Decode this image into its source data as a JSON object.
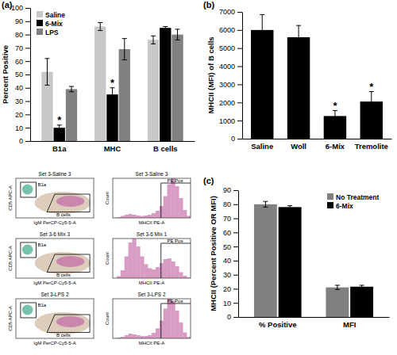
{
  "chart_data": [
    {
      "type": "bar",
      "title": "(a)",
      "y_label": "Percent Positive",
      "categories": [
        "B1a",
        "MHC",
        "B cells"
      ],
      "series": [
        {
          "name": "Saline",
          "color": "#c8c8c8",
          "values": [
            52,
            86,
            76
          ],
          "errors": [
            10,
            3,
            3
          ]
        },
        {
          "name": "6-Mix",
          "color": "#000000",
          "values": [
            10,
            35,
            85
          ],
          "errors": [
            2,
            5,
            1
          ]
        },
        {
          "name": "LPS",
          "color": "#808080",
          "values": [
            39,
            69,
            80
          ],
          "errors": [
            2,
            8,
            4
          ]
        }
      ],
      "annotations": [
        {
          "text": "*",
          "category": "B1a",
          "series": "6-Mix"
        },
        {
          "text": "*",
          "category": "MHC",
          "series": "6-Mix"
        }
      ],
      "ylim": [
        0,
        100
      ],
      "yticks": [
        0,
        10,
        20,
        30,
        40,
        50,
        60,
        70,
        80,
        90,
        100
      ],
      "legend": "upper left"
    },
    {
      "type": "bar",
      "title": "(b)",
      "y_label": "MHCII (MFI) of B cells",
      "categories": [
        "Saline",
        "Woll",
        "6-Mix",
        "Tremolite"
      ],
      "values": [
        6000,
        5600,
        1250,
        2050
      ],
      "errors": [
        850,
        650,
        300,
        550
      ],
      "color": "#000000",
      "annotations": [
        {
          "text": "*",
          "category": "6-Mix"
        },
        {
          "text": "*",
          "category": "Tremolite"
        }
      ],
      "ylim": [
        0,
        7000
      ],
      "yticks": [
        0,
        1000,
        2000,
        3000,
        4000,
        5000,
        6000,
        7000
      ]
    },
    {
      "type": "bar",
      "title": "(c)",
      "y_label": "MHCII (Percent Positive OR MFI)",
      "categories": [
        "% Positive",
        "MFI"
      ],
      "series": [
        {
          "name": "No Treatment",
          "color": "#808080",
          "values": [
            80,
            21
          ],
          "errors": [
            2,
            1.5
          ]
        },
        {
          "name": "6-Mix",
          "color": "#000000",
          "values": [
            78,
            21.5
          ],
          "errors": [
            1,
            1
          ]
        }
      ],
      "ylim": [
        0,
        90
      ],
      "yticks": [
        0,
        10,
        20,
        30,
        40,
        50,
        60,
        70,
        80,
        90
      ],
      "legend": "upper right"
    }
  ],
  "flow_panels": [
    {
      "scatter": {
        "title": "Set 3-Saline 3",
        "x_label": "IgM PerCP-Cy5-5-A",
        "y_label": "CD5 APC-A",
        "gates": [
          "B1a",
          "B cells"
        ]
      },
      "histogram": {
        "type": "histogram",
        "title": "Set 3-Saline 3",
        "x_label": "MHCII PE-A",
        "y_label": "Count",
        "gate": "PE Pos",
        "color": "#d89cc4",
        "bins": [
          0,
          1,
          2,
          3,
          4,
          5,
          6,
          7,
          8,
          9,
          10,
          11,
          12,
          13,
          14,
          15,
          16,
          17,
          18,
          19,
          20
        ],
        "counts": [
          0,
          2,
          5,
          8,
          10,
          8,
          6,
          5,
          6,
          8,
          12,
          18,
          30,
          55,
          85,
          100,
          80,
          50,
          20,
          5
        ],
        "xlim": [
          0,
          20
        ],
        "ylim": [
          0,
          100
        ],
        "tick_labels": false
      }
    },
    {
      "scatter": {
        "title": "Set 3-6 Mix 3",
        "x_label": "IgM PerCP-Cy5-5-A",
        "y_label": "CD5 APC-A",
        "gates": [
          "B1a",
          "B cells"
        ]
      },
      "histogram": {
        "type": "histogram",
        "title": "Set 3-6 Mix 1",
        "x_label": "MHCII PE-A",
        "y_label": "Count",
        "gate": "PE Pos",
        "color": "#d89cc4",
        "bins": [
          0,
          1,
          2,
          3,
          4,
          5,
          6,
          7,
          8,
          9,
          10,
          11,
          12,
          13,
          14,
          15,
          16,
          17,
          18,
          19,
          20
        ],
        "counts": [
          0,
          5,
          20,
          55,
          90,
          100,
          80,
          55,
          35,
          25,
          22,
          28,
          38,
          48,
          50,
          42,
          30,
          15,
          6,
          2
        ],
        "xlim": [
          0,
          20
        ],
        "ylim": [
          0,
          100
        ],
        "tick_labels": false
      }
    },
    {
      "scatter": {
        "title": "Set 3-LPS 2",
        "x_label": "IgM PerCP-Cy5-5-A",
        "y_label": "CD5 APC-A",
        "gates": [
          "B1a",
          "B cells"
        ]
      },
      "histogram": {
        "type": "histogram",
        "title": "Set 3-LPS 2",
        "x_label": "MHCII PE-A",
        "y_label": "Count",
        "gate": "PE Pos",
        "color": "#d89cc4",
        "bins": [
          0,
          1,
          2,
          3,
          4,
          5,
          6,
          7,
          8,
          9,
          10,
          11,
          12,
          13,
          14,
          15,
          16,
          17,
          18,
          19,
          20
        ],
        "counts": [
          0,
          2,
          4,
          8,
          12,
          10,
          8,
          6,
          6,
          8,
          14,
          25,
          45,
          75,
          100,
          95,
          70,
          40,
          15,
          4
        ],
        "xlim": [
          0,
          20
        ],
        "ylim": [
          0,
          100
        ],
        "tick_labels": false
      }
    }
  ]
}
